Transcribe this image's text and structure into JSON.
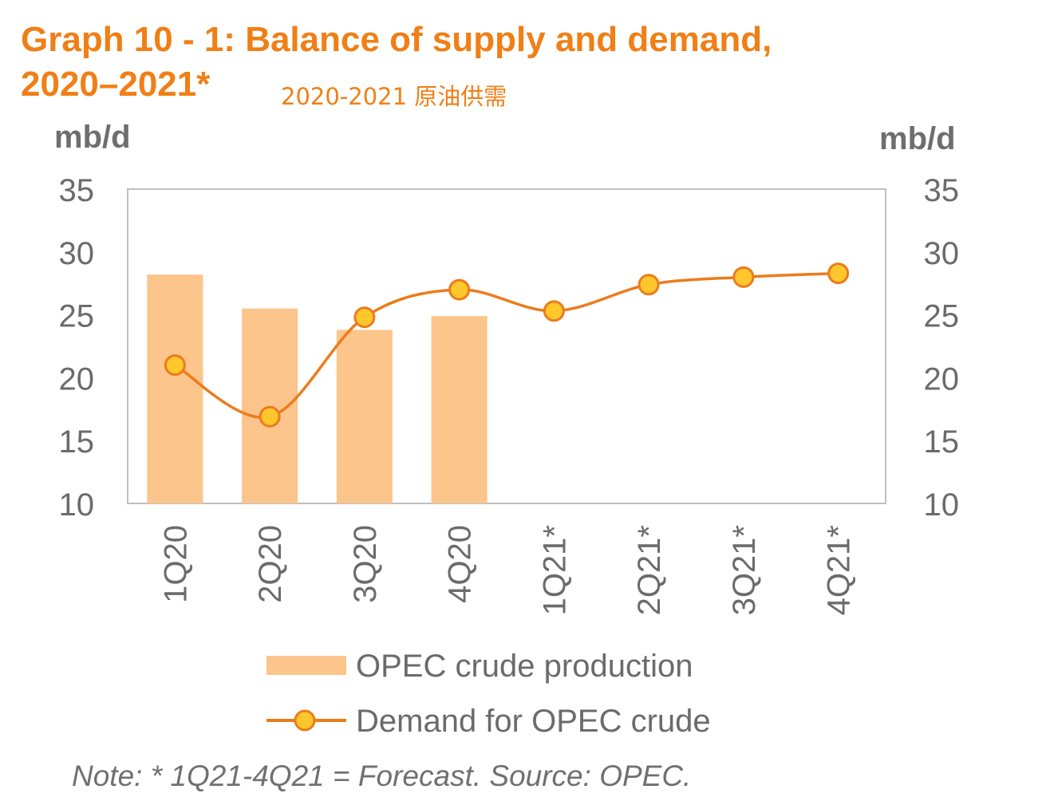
{
  "page": {
    "title_line1": "Graph 10 - 1: Balance of supply and demand,",
    "title_line2": "2020–2021*",
    "subtitle": "2020-2021 原油供需",
    "note": "Note: * 1Q21-4Q21 = Forecast. Source: OPEC."
  },
  "chart_data": {
    "type": "bar",
    "title": "Graph 10 - 1: Balance of supply and demand, 2020–2021*",
    "categories": [
      "1Q20",
      "2Q20",
      "3Q20",
      "4Q20",
      "1Q21*",
      "2Q21*",
      "3Q21*",
      "4Q21*"
    ],
    "ylabel_left": "mb/d",
    "ylabel_right": "mb/d",
    "ylim": [
      10,
      35
    ],
    "yticks": [
      10,
      15,
      20,
      25,
      30,
      35
    ],
    "grid": false,
    "legend_position": "bottom",
    "series": [
      {
        "name": "OPEC crude production",
        "type": "bar",
        "color": "#fbc58b",
        "values": [
          28.2,
          25.5,
          23.8,
          24.9,
          null,
          null,
          null,
          null
        ]
      },
      {
        "name": "Demand for OPEC crude",
        "type": "line",
        "color": "#ec7c1c",
        "marker_color": "#ffc72c",
        "values": [
          21.0,
          16.9,
          24.8,
          27.0,
          25.3,
          27.4,
          28.0,
          28.3
        ]
      }
    ]
  }
}
